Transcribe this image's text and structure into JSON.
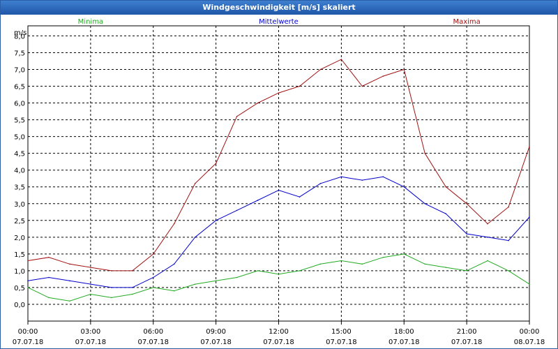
{
  "window": {
    "title": "Windgeschwindigkeit [m/s] skaliert"
  },
  "chart_data": {
    "type": "line",
    "title": "Windgeschwindigkeit [m/s] skaliert",
    "ylabel": "m/s",
    "xlabel": "",
    "ylim": [
      -0.5,
      8.3
    ],
    "xlim": [
      0,
      24
    ],
    "grid": true,
    "x_tick_hours": [
      0,
      3,
      6,
      9,
      12,
      15,
      18,
      21,
      24
    ],
    "x_tick_labels": [
      {
        "time": "00:00",
        "date": "07.07.18"
      },
      {
        "time": "03:00",
        "date": "07.07.18"
      },
      {
        "time": "06:00",
        "date": "07.07.18"
      },
      {
        "time": "09:00",
        "date": "07.07.18"
      },
      {
        "time": "12:00",
        "date": "07.07.18"
      },
      {
        "time": "15:00",
        "date": "07.07.18"
      },
      {
        "time": "18:00",
        "date": "07.07.18"
      },
      {
        "time": "21:00",
        "date": "07.07.18"
      },
      {
        "time": "00:00",
        "date": "08.07.18"
      }
    ],
    "y_ticks": [
      0,
      0.5,
      1,
      1.5,
      2,
      2.5,
      3,
      3.5,
      4,
      4.5,
      5,
      5.5,
      6,
      6.5,
      7,
      7.5,
      8
    ],
    "y_tick_labels": [
      "0,0",
      "0,5",
      "1,0",
      "1,5",
      "2,0",
      "2,5",
      "3,0",
      "3,5",
      "4,0",
      "4,5",
      "5,0",
      "5,5",
      "6,0",
      "6,5",
      "7,0",
      "7,5",
      "8,0"
    ],
    "legend_position": "top",
    "series": [
      {
        "name": "Minima",
        "color": "#22aa22",
        "x": [
          0,
          1,
          2,
          3,
          4,
          5,
          6,
          7,
          8,
          9,
          10,
          11,
          12,
          13,
          14,
          15,
          16,
          17,
          18,
          19,
          20,
          21,
          22,
          23,
          24
        ],
        "values": [
          0.5,
          0.2,
          0.1,
          0.3,
          0.2,
          0.3,
          0.5,
          0.4,
          0.6,
          0.7,
          0.8,
          1.0,
          0.9,
          1.0,
          1.2,
          1.3,
          1.2,
          1.4,
          1.5,
          1.2,
          1.1,
          1.0,
          1.3,
          1.0,
          0.6
        ]
      },
      {
        "name": "Mittelwerte",
        "color": "#0000cc",
        "x": [
          0,
          1,
          2,
          3,
          4,
          5,
          6,
          7,
          8,
          9,
          10,
          11,
          12,
          13,
          14,
          15,
          16,
          17,
          18,
          19,
          20,
          21,
          22,
          23,
          24
        ],
        "values": [
          0.7,
          0.8,
          0.7,
          0.6,
          0.5,
          0.5,
          0.8,
          1.2,
          2.0,
          2.5,
          2.8,
          3.1,
          3.4,
          3.2,
          3.6,
          3.8,
          3.7,
          3.8,
          3.5,
          3.0,
          2.7,
          2.1,
          2.0,
          1.9,
          2.6
        ]
      },
      {
        "name": "Maxima",
        "color": "#a01010",
        "x": [
          0,
          1,
          2,
          3,
          4,
          5,
          6,
          7,
          8,
          9,
          10,
          11,
          12,
          13,
          14,
          15,
          16,
          17,
          18,
          19,
          20,
          21,
          22,
          23,
          24
        ],
        "values": [
          1.3,
          1.4,
          1.2,
          1.1,
          1.0,
          1.0,
          1.5,
          2.4,
          3.6,
          4.2,
          5.6,
          6.0,
          6.3,
          6.5,
          7.0,
          7.3,
          6.5,
          6.8,
          7.0,
          4.5,
          3.5,
          3.0,
          2.4,
          2.9,
          4.7
        ]
      }
    ]
  }
}
